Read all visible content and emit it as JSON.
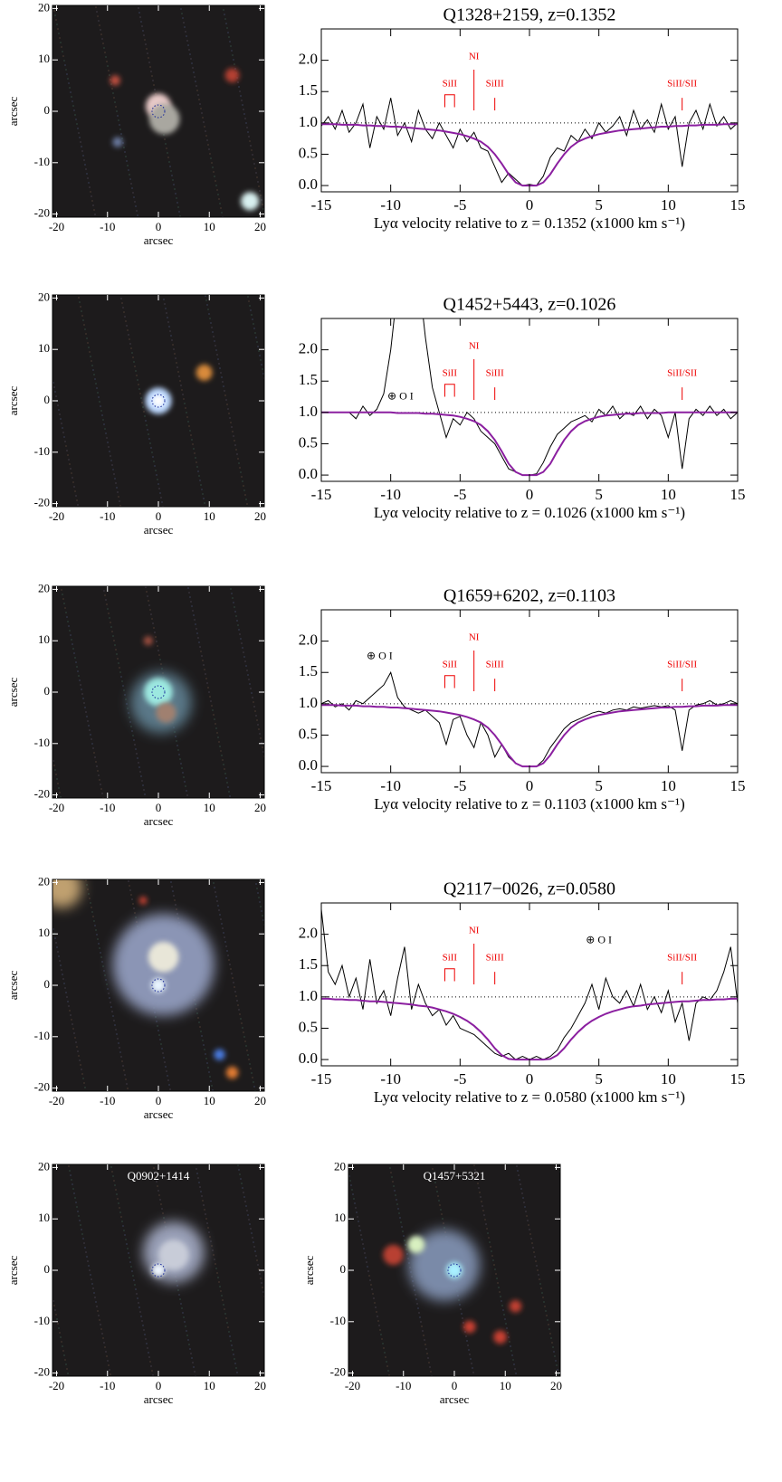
{
  "chart_data": [
    {
      "type": "image",
      "xlim": [
        -20.8,
        20.8
      ],
      "ylim": [
        -20.6,
        20.6
      ],
      "xticks": [
        -20,
        -10,
        0,
        10,
        20
      ],
      "yticks": [
        -20,
        -10,
        0,
        10,
        20
      ],
      "xlabel": "arcsec",
      "ylabel": "arcsec"
    },
    {
      "type": "line",
      "title": "Q1328+2159, z=0.1352",
      "xlabel": "Lyα velocity relative to z = 0.1352 (x1000 km s⁻¹)",
      "xlim": [
        -15,
        15
      ],
      "ylim": [
        -0.1,
        2.5
      ],
      "xticks": [
        -15,
        -10,
        -5,
        0,
        5,
        10,
        15
      ],
      "yticks": [
        {
          "value": 0,
          "label": "0.0"
        },
        {
          "value": 0.5,
          "label": "0.5"
        },
        {
          "value": 1,
          "label": "1.0"
        },
        {
          "value": 1.5,
          "label": "1.5"
        },
        {
          "value": 2,
          "label": "2.0"
        }
      ],
      "hline": 1,
      "x": [
        -15,
        -14.5,
        -14,
        -13.5,
        -13,
        -12.5,
        -12,
        -11.5,
        -11,
        -10.5,
        -10,
        -9.5,
        -9,
        -8.5,
        -8,
        -7.5,
        -7,
        -6.5,
        -6,
        -5.5,
        -5,
        -4.5,
        -4,
        -3.5,
        -3,
        -2.5,
        -2,
        -1.5,
        -1,
        -0.5,
        0,
        0.5,
        1,
        1.5,
        2,
        2.5,
        3,
        3.5,
        4,
        4.5,
        5,
        5.5,
        6,
        6.5,
        7,
        7.5,
        8,
        8.5,
        9,
        9.5,
        10,
        10.5,
        11,
        11.5,
        12,
        12.5,
        13,
        13.5,
        14,
        14.5,
        15
      ],
      "series": [
        {
          "color": "#000000",
          "values": [
            0.95,
            1.1,
            0.9,
            1.2,
            0.85,
            1.0,
            1.3,
            0.6,
            1.1,
            0.9,
            1.4,
            0.8,
            1.0,
            0.7,
            1.2,
            0.9,
            0.75,
            1.0,
            0.8,
            0.6,
            0.9,
            0.7,
            0.85,
            0.6,
            0.55,
            0.3,
            0.05,
            0.2,
            0.1,
            0,
            0.02,
            0,
            0.15,
            0.45,
            0.6,
            0.55,
            0.8,
            0.7,
            0.9,
            0.75,
            1.0,
            0.85,
            0.95,
            1.1,
            0.8,
            1.2,
            0.9,
            1.05,
            0.85,
            1.3,
            0.9,
            1.1,
            0.3,
            1.0,
            1.2,
            0.9,
            1.3,
            0.95,
            1.1,
            0.9,
            1.0
          ]
        },
        {
          "color": "#8b1fa0",
          "values": [
            0.98,
            0.98,
            0.98,
            0.97,
            0.97,
            0.97,
            0.96,
            0.96,
            0.95,
            0.95,
            0.94,
            0.94,
            0.93,
            0.92,
            0.91,
            0.9,
            0.89,
            0.88,
            0.86,
            0.84,
            0.82,
            0.79,
            0.75,
            0.7,
            0.62,
            0.5,
            0.35,
            0.18,
            0.05,
            0,
            0,
            0,
            0.05,
            0.18,
            0.35,
            0.5,
            0.62,
            0.7,
            0.75,
            0.79,
            0.82,
            0.84,
            0.86,
            0.88,
            0.89,
            0.9,
            0.91,
            0.92,
            0.93,
            0.94,
            0.94,
            0.95,
            0.95,
            0.96,
            0.96,
            0.97,
            0.97,
            0.97,
            0.98,
            0.98,
            0.98
          ]
        }
      ],
      "features": [
        {
          "label": "SiII",
          "x": [
            -6.1,
            -5.4
          ]
        },
        {
          "label": "NI",
          "x": -4
        },
        {
          "label": "SiIII",
          "x": -2.5
        },
        {
          "label": "SiII/SII",
          "x": 11
        }
      ]
    },
    {
      "type": "image",
      "xlim": [
        -20.8,
        20.8
      ],
      "ylim": [
        -20.6,
        20.6
      ],
      "xticks": [
        -20,
        -10,
        0,
        10,
        20
      ],
      "yticks": [
        -20,
        -10,
        0,
        10,
        20
      ],
      "xlabel": "arcsec",
      "ylabel": "arcsec"
    },
    {
      "type": "line",
      "title": "Q1452+5443, z=0.1026",
      "xlabel": "Lyα velocity relative to z = 0.1026 (x1000 km s⁻¹)",
      "xlim": [
        -15,
        15
      ],
      "ylim": [
        -0.1,
        2.5
      ],
      "xticks": [
        -15,
        -10,
        -5,
        0,
        5,
        10,
        15
      ],
      "yticks": [
        {
          "value": 0,
          "label": "0.0"
        },
        {
          "value": 0.5,
          "label": "0.5"
        },
        {
          "value": 1,
          "label": "1.0"
        },
        {
          "value": 1.5,
          "label": "1.5"
        },
        {
          "value": 2,
          "label": "2.0"
        }
      ],
      "hline": 1,
      "x": [
        -15,
        -14.5,
        -14,
        -13.5,
        -13,
        -12.5,
        -12,
        -11.5,
        -11,
        -10.5,
        -10,
        -9.5,
        -9,
        -8.5,
        -8,
        -7.5,
        -7,
        -6.5,
        -6,
        -5.5,
        -5,
        -4.5,
        -4,
        -3.5,
        -3,
        -2.5,
        -2,
        -1.5,
        -1,
        -0.5,
        0,
        0.5,
        1,
        1.5,
        2,
        2.5,
        3,
        3.5,
        4,
        4.5,
        5,
        5.5,
        6,
        6.5,
        7,
        7.5,
        8,
        8.5,
        9,
        9.5,
        10,
        10.5,
        11,
        11.5,
        12,
        12.5,
        13,
        13.5,
        14,
        14.5,
        15
      ],
      "series": [
        {
          "color": "#000000",
          "values": [
            null,
            null,
            null,
            null,
            1.0,
            0.9,
            1.1,
            0.95,
            1.05,
            1.3,
            2.0,
            3.0,
            3.5,
            2.6,
            3.2,
            2.2,
            1.4,
            1.0,
            0.6,
            0.9,
            0.8,
            1.0,
            0.9,
            0.7,
            0.6,
            0.5,
            0.3,
            0.1,
            0.05,
            0,
            0,
            0.02,
            0.2,
            0.45,
            0.65,
            0.75,
            0.85,
            0.9,
            0.95,
            0.85,
            1.05,
            0.95,
            1.1,
            0.9,
            1.0,
            0.95,
            1.1,
            0.9,
            1.05,
            0.95,
            0.6,
            1.0,
            0.1,
            0.9,
            1.05,
            0.95,
            1.1,
            0.95,
            1.05,
            0.9,
            1.0
          ]
        },
        {
          "color": "#8b1fa0",
          "values": [
            1,
            1,
            1,
            1,
            1,
            1,
            1,
            1,
            1,
            1,
            1,
            0.99,
            0.99,
            0.99,
            0.99,
            0.98,
            0.98,
            0.97,
            0.96,
            0.95,
            0.93,
            0.9,
            0.86,
            0.8,
            0.7,
            0.56,
            0.38,
            0.18,
            0.05,
            0,
            0,
            0,
            0.05,
            0.18,
            0.38,
            0.56,
            0.7,
            0.8,
            0.86,
            0.9,
            0.93,
            0.95,
            0.96,
            0.97,
            0.98,
            0.98,
            0.99,
            0.99,
            0.99,
            0.99,
            1,
            1,
            1,
            1,
            1,
            1,
            1,
            1,
            1,
            1,
            1
          ]
        }
      ],
      "features": [
        {
          "label": "SiII",
          "x": [
            -6.1,
            -5.4
          ]
        },
        {
          "label": "NI",
          "x": -4
        },
        {
          "label": "SiIII",
          "x": -2.5
        },
        {
          "label": "SiII/SII",
          "x": 11
        }
      ],
      "annotations": [
        {
          "text": "⊕ O I",
          "x": -9.3,
          "y": 1.25
        }
      ]
    },
    {
      "type": "image",
      "xlim": [
        -20.8,
        20.8
      ],
      "ylim": [
        -20.6,
        20.6
      ],
      "xticks": [
        -20,
        -10,
        0,
        10,
        20
      ],
      "yticks": [
        -20,
        -10,
        0,
        10,
        20
      ],
      "xlabel": "arcsec",
      "ylabel": "arcsec"
    },
    {
      "type": "line",
      "title": "Q1659+6202, z=0.1103",
      "xlabel": "Lyα velocity relative to z = 0.1103 (x1000 km s⁻¹)",
      "xlim": [
        -15,
        15
      ],
      "ylim": [
        -0.1,
        2.5
      ],
      "xticks": [
        -15,
        -10,
        -5,
        0,
        5,
        10,
        15
      ],
      "yticks": [
        {
          "value": 0,
          "label": "0.0"
        },
        {
          "value": 0.5,
          "label": "0.5"
        },
        {
          "value": 1,
          "label": "1.0"
        },
        {
          "value": 1.5,
          "label": "1.5"
        },
        {
          "value": 2,
          "label": "2.0"
        }
      ],
      "hline": 1,
      "x": [
        -15,
        -14.5,
        -14,
        -13.5,
        -13,
        -12.5,
        -12,
        -11.5,
        -11,
        -10.5,
        -10,
        -9.5,
        -9,
        -8.5,
        -8,
        -7.5,
        -7,
        -6.5,
        -6,
        -5.5,
        -5,
        -4.5,
        -4,
        -3.5,
        -3,
        -2.5,
        -2,
        -1.5,
        -1,
        -0.5,
        0,
        0.5,
        1,
        1.5,
        2,
        2.5,
        3,
        3.5,
        4,
        4.5,
        5,
        5.5,
        6,
        6.5,
        7,
        7.5,
        8,
        8.5,
        9,
        9.5,
        10,
        10.5,
        11,
        11.5,
        12,
        12.5,
        13,
        13.5,
        14,
        14.5,
        15
      ],
      "series": [
        {
          "color": "#000000",
          "values": [
            1.0,
            1.05,
            0.95,
            1.0,
            0.9,
            1.05,
            1.0,
            1.1,
            1.2,
            1.3,
            1.5,
            1.1,
            0.95,
            0.9,
            0.85,
            0.9,
            0.8,
            0.7,
            0.35,
            0.75,
            0.8,
            0.5,
            0.3,
            0.7,
            0.5,
            0.15,
            0.35,
            0.15,
            0.05,
            0,
            0,
            0,
            0.1,
            0.3,
            0.45,
            0.6,
            0.7,
            0.75,
            0.8,
            0.85,
            0.88,
            0.85,
            0.9,
            0.92,
            0.9,
            0.95,
            0.93,
            0.95,
            0.97,
            0.95,
            0.97,
            0.9,
            0.25,
            0.9,
            0.98,
            1.0,
            1.05,
            0.98,
            1.0,
            1.05,
            1.0
          ]
        },
        {
          "color": "#8b1fa0",
          "values": [
            0.98,
            0.98,
            0.98,
            0.97,
            0.97,
            0.97,
            0.96,
            0.96,
            0.95,
            0.95,
            0.94,
            0.94,
            0.93,
            0.92,
            0.91,
            0.9,
            0.89,
            0.88,
            0.86,
            0.84,
            0.82,
            0.79,
            0.75,
            0.7,
            0.62,
            0.5,
            0.35,
            0.18,
            0.05,
            0,
            0,
            0,
            0.05,
            0.18,
            0.35,
            0.5,
            0.62,
            0.7,
            0.75,
            0.79,
            0.82,
            0.84,
            0.86,
            0.88,
            0.89,
            0.9,
            0.91,
            0.92,
            0.93,
            0.94,
            0.94,
            0.95,
            0.95,
            0.96,
            0.96,
            0.97,
            0.97,
            0.97,
            0.98,
            0.98,
            0.98
          ]
        }
      ],
      "features": [
        {
          "label": "SiII",
          "x": [
            -6.1,
            -5.4
          ]
        },
        {
          "label": "NI",
          "x": -4
        },
        {
          "label": "SiIII",
          "x": -2.5
        },
        {
          "label": "SiII/SII",
          "x": 11
        }
      ],
      "annotations": [
        {
          "text": "⊕ O I",
          "x": -10.8,
          "y": 1.75
        }
      ]
    },
    {
      "type": "image",
      "xlim": [
        -20.8,
        20.8
      ],
      "ylim": [
        -20.6,
        20.6
      ],
      "xticks": [
        -20,
        -10,
        0,
        10,
        20
      ],
      "yticks": [
        -20,
        -10,
        0,
        10,
        20
      ],
      "xlabel": "arcsec",
      "ylabel": "arcsec"
    },
    {
      "type": "line",
      "title": "Q2117−0026, z=0.0580",
      "xlabel": "Lyα velocity relative to z = 0.0580 (x1000 km s⁻¹)",
      "xlim": [
        -15,
        15
      ],
      "ylim": [
        -0.1,
        2.5
      ],
      "xticks": [
        -15,
        -10,
        -5,
        0,
        5,
        10,
        15
      ],
      "yticks": [
        {
          "value": 0,
          "label": "0.0"
        },
        {
          "value": 0.5,
          "label": "0.5"
        },
        {
          "value": 1,
          "label": "1.0"
        },
        {
          "value": 1.5,
          "label": "1.5"
        },
        {
          "value": 2,
          "label": "2.0"
        }
      ],
      "hline": 1,
      "x": [
        -15,
        -14.5,
        -14,
        -13.5,
        -13,
        -12.5,
        -12,
        -11.5,
        -11,
        -10.5,
        -10,
        -9.5,
        -9,
        -8.5,
        -8,
        -7.5,
        -7,
        -6.5,
        -6,
        -5.5,
        -5,
        -4.5,
        -4,
        -3.5,
        -3,
        -2.5,
        -2,
        -1.5,
        -1,
        -0.5,
        0,
        0.5,
        1,
        1.5,
        2,
        2.5,
        3,
        3.5,
        4,
        4.5,
        5,
        5.5,
        6,
        6.5,
        7,
        7.5,
        8,
        8.5,
        9,
        9.5,
        10,
        10.5,
        11,
        11.5,
        12,
        12.5,
        13,
        13.5,
        14,
        14.5,
        15
      ],
      "series": [
        {
          "color": "#000000",
          "values": [
            2.4,
            1.4,
            1.2,
            1.5,
            1.0,
            1.3,
            0.8,
            1.6,
            0.9,
            1.1,
            0.7,
            1.3,
            1.8,
            0.8,
            1.2,
            0.9,
            0.7,
            0.8,
            0.55,
            0.7,
            0.5,
            0.45,
            0.4,
            0.3,
            0.2,
            0.1,
            0.05,
            0.1,
            0,
            0.05,
            0,
            0.05,
            0,
            0.05,
            0.15,
            0.35,
            0.5,
            0.7,
            0.9,
            1.2,
            0.8,
            1.3,
            1.0,
            0.9,
            1.1,
            0.85,
            1.2,
            0.8,
            1.0,
            0.75,
            1.1,
            0.6,
            0.9,
            0.3,
            0.9,
            1.0,
            0.95,
            1.1,
            1.4,
            1.8,
            0.9
          ]
        },
        {
          "color": "#8b1fa0",
          "values": [
            0.97,
            0.97,
            0.96,
            0.96,
            0.95,
            0.95,
            0.94,
            0.93,
            0.93,
            0.92,
            0.91,
            0.9,
            0.89,
            0.88,
            0.86,
            0.85,
            0.83,
            0.8,
            0.77,
            0.73,
            0.68,
            0.62,
            0.54,
            0.44,
            0.32,
            0.18,
            0.07,
            0.01,
            0,
            0,
            0,
            0,
            0,
            0.01,
            0.07,
            0.18,
            0.32,
            0.44,
            0.54,
            0.62,
            0.68,
            0.73,
            0.77,
            0.8,
            0.83,
            0.85,
            0.86,
            0.88,
            0.89,
            0.9,
            0.91,
            0.92,
            0.93,
            0.93,
            0.94,
            0.95,
            0.95,
            0.96,
            0.96,
            0.97,
            0.97
          ]
        }
      ],
      "features": [
        {
          "label": "SiII",
          "x": [
            -6.1,
            -5.4
          ]
        },
        {
          "label": "NI",
          "x": -4
        },
        {
          "label": "SiIII",
          "x": -2.5
        },
        {
          "label": "SiII/SII",
          "x": 11
        }
      ],
      "annotations": [
        {
          "text": "⊕ O I",
          "x": 5,
          "y": 1.9
        }
      ]
    },
    {
      "type": "image",
      "title": "Q0902+1414",
      "xlim": [
        -20.8,
        20.8
      ],
      "ylim": [
        -20.6,
        20.6
      ],
      "xticks": [
        -20,
        -10,
        0,
        10,
        20
      ],
      "yticks": [
        -20,
        -10,
        0,
        10,
        20
      ],
      "xlabel": "arcsec",
      "ylabel": "arcsec"
    },
    {
      "type": "image",
      "title": "Q1457+5321",
      "xlim": [
        -20.8,
        20.8
      ],
      "ylim": [
        -20.6,
        20.6
      ],
      "xticks": [
        -20,
        -10,
        0,
        10,
        20
      ],
      "yticks": [
        -20,
        -10,
        0,
        10,
        20
      ],
      "xlabel": "arcsec",
      "ylabel": "arcsec"
    }
  ]
}
